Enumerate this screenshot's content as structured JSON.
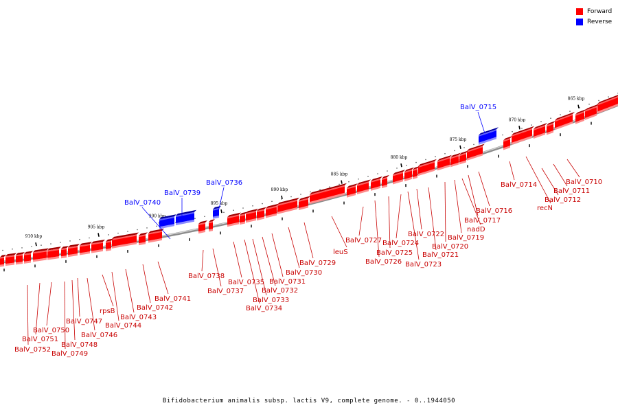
{
  "legend": {
    "forward_label": "Forward",
    "reverse_label": "Reverse",
    "forward_color": "#ff0000",
    "reverse_color": "#0000ff"
  },
  "caption": "Bifidobacterium animalis subsp. lactis V9, complete genome. - 0..1944050",
  "scale": {
    "unit": "kbp",
    "ticks": [
      {
        "value": 865,
        "label": "865 kbp"
      },
      {
        "value": 870,
        "label": "870 kbp"
      },
      {
        "value": 875,
        "label": "875 kbp"
      },
      {
        "value": 880,
        "label": "880 kbp"
      },
      {
        "value": 885,
        "label": "885 kbp"
      },
      {
        "value": 890,
        "label": "890 kbp"
      },
      {
        "value": 895,
        "label": "895 kbp"
      },
      {
        "value": 900,
        "label": "900 kbp"
      },
      {
        "value": 905,
        "label": "905 kbp"
      },
      {
        "value": 910,
        "label": "910 kbp"
      }
    ]
  },
  "genes": [
    {
      "label": "BalV_0710",
      "strand": "forward"
    },
    {
      "label": "BalV_0711",
      "strand": "forward"
    },
    {
      "label": "BalV_0712",
      "strand": "forward"
    },
    {
      "label": "recN",
      "strand": "forward"
    },
    {
      "label": "BalV_0714",
      "strand": "forward"
    },
    {
      "label": "BalV_0715",
      "strand": "reverse"
    },
    {
      "label": "BalV_0716",
      "strand": "forward"
    },
    {
      "label": "BalV_0717",
      "strand": "forward"
    },
    {
      "label": "nadD",
      "strand": "forward"
    },
    {
      "label": "BalV_0719",
      "strand": "forward"
    },
    {
      "label": "BalV_0720",
      "strand": "forward"
    },
    {
      "label": "BalV_0721",
      "strand": "forward"
    },
    {
      "label": "BalV_0722",
      "strand": "forward"
    },
    {
      "label": "BalV_0723",
      "strand": "forward"
    },
    {
      "label": "BalV_0724",
      "strand": "forward"
    },
    {
      "label": "BalV_0725",
      "strand": "forward"
    },
    {
      "label": "BalV_0726",
      "strand": "forward"
    },
    {
      "label": "BalV_0727",
      "strand": "forward"
    },
    {
      "label": "leuS",
      "strand": "forward"
    },
    {
      "label": "BalV_0729",
      "strand": "forward"
    },
    {
      "label": "BalV_0730",
      "strand": "forward"
    },
    {
      "label": "BalV_0731",
      "strand": "forward"
    },
    {
      "label": "BalV_0732",
      "strand": "forward"
    },
    {
      "label": "BalV_0733",
      "strand": "forward"
    },
    {
      "label": "BalV_0734",
      "strand": "forward"
    },
    {
      "label": "BalV_0735",
      "strand": "forward"
    },
    {
      "label": "BalV_0736",
      "strand": "reverse"
    },
    {
      "label": "BalV_0737",
      "strand": "forward"
    },
    {
      "label": "BalV_0738",
      "strand": "forward"
    },
    {
      "label": "BalV_0739",
      "strand": "reverse"
    },
    {
      "label": "BalV_0740",
      "strand": "reverse"
    },
    {
      "label": "BalV_0741",
      "strand": "forward"
    },
    {
      "label": "BalV_0742",
      "strand": "forward"
    },
    {
      "label": "BalV_0743",
      "strand": "forward"
    },
    {
      "label": "BalV_0744",
      "strand": "forward"
    },
    {
      "label": "rpsB",
      "strand": "forward"
    },
    {
      "label": "BalV_0746",
      "strand": "forward"
    },
    {
      "label": "BalV_0747",
      "strand": "forward"
    },
    {
      "label": "BalV_0748",
      "strand": "forward"
    },
    {
      "label": "BalV_0749",
      "strand": "forward"
    },
    {
      "label": "BalV_0750",
      "strand": "forward"
    },
    {
      "label": "BalV_0751",
      "strand": "forward"
    },
    {
      "label": "BalV_0752",
      "strand": "forward"
    }
  ]
}
